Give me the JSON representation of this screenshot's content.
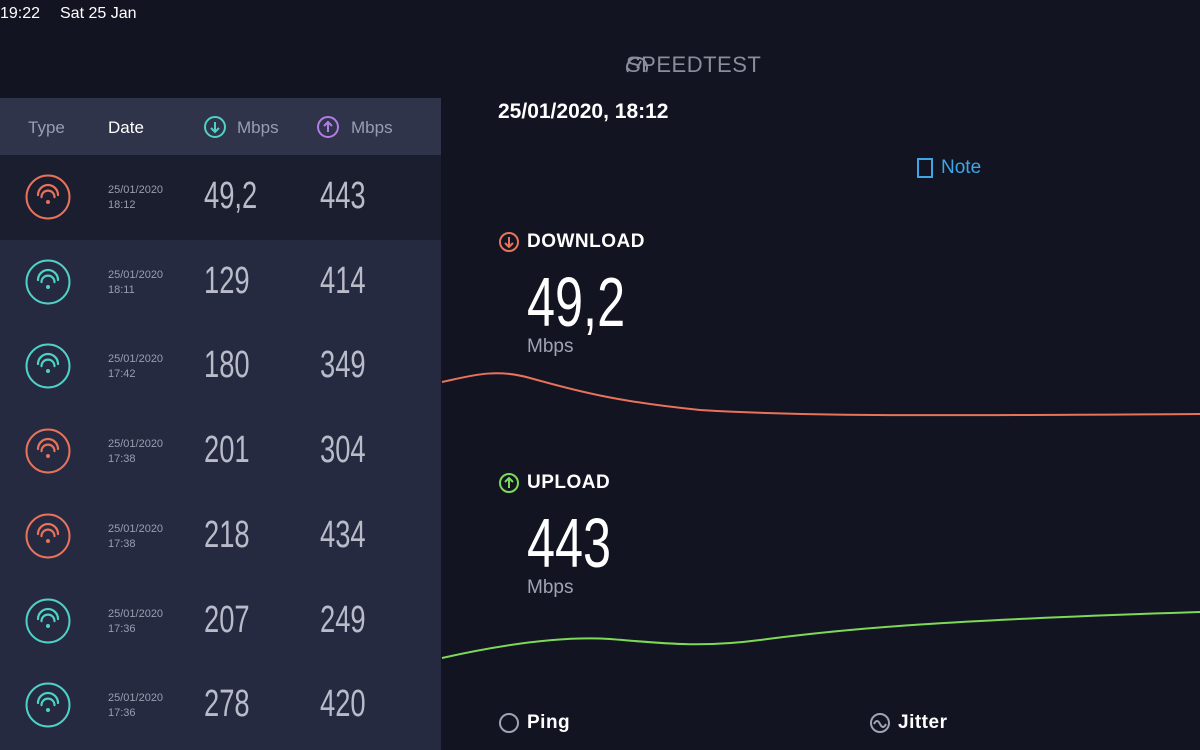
{
  "status_bar": {
    "time": "19:22",
    "date": "Sat 25 Jan"
  },
  "app": {
    "brand": "SPEEDTEST"
  },
  "history": {
    "columns": {
      "type": "Type",
      "date": "Date",
      "download": "Mbps",
      "upload": "Mbps"
    },
    "rows": [
      {
        "date": "25/01/2020",
        "time": "18:12",
        "download": "49,2",
        "upload": "443",
        "icon_color": "#e8735a"
      },
      {
        "date": "25/01/2020",
        "time": "18:11",
        "download": "129",
        "upload": "414",
        "icon_color": "#4fd1c5"
      },
      {
        "date": "25/01/2020",
        "time": "17:42",
        "download": "180",
        "upload": "349",
        "icon_color": "#4fd1c5"
      },
      {
        "date": "25/01/2020",
        "time": "17:38",
        "download": "201",
        "upload": "304",
        "icon_color": "#e8735a"
      },
      {
        "date": "25/01/2020",
        "time": "17:38",
        "download": "218",
        "upload": "434",
        "icon_color": "#e8735a"
      },
      {
        "date": "25/01/2020",
        "time": "17:36",
        "download": "207",
        "upload": "249",
        "icon_color": "#4fd1c5"
      },
      {
        "date": "25/01/2020",
        "time": "17:36",
        "download": "278",
        "upload": "420",
        "icon_color": "#4fd1c5"
      }
    ]
  },
  "detail": {
    "timestamp": "25/01/2020, 18:12",
    "note": "Note",
    "download": {
      "label": "DOWNLOAD",
      "value": "49,2",
      "unit": "Mbps"
    },
    "upload": {
      "label": "UPLOAD",
      "value": "443",
      "unit": "Mbps"
    },
    "ping": "Ping",
    "jitter": "Jitter"
  }
}
